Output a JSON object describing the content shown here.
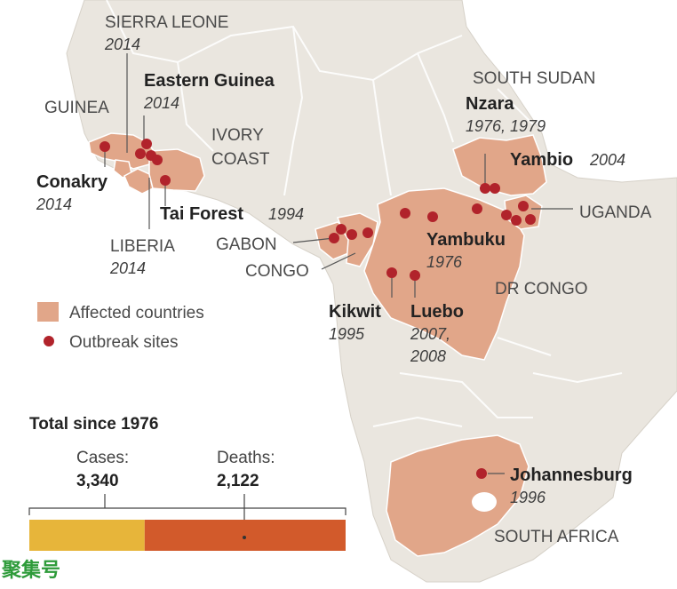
{
  "colors": {
    "ocean": "#ffffff",
    "land": "#eae6df",
    "affected": "#e1a689",
    "site": "#b1232b",
    "cases_bar": "#e7b53a",
    "deaths_bar": "#d25a2b"
  },
  "regions": {
    "sierra_leone": "SIERRA LEONE",
    "guinea": "GUINEA",
    "ivory_coast_line1": "IVORY",
    "ivory_coast_line2": "COAST",
    "liberia": "LIBERIA",
    "gabon": "GABON",
    "congo": "CONGO",
    "south_sudan": "SOUTH SUDAN",
    "uganda": "UGANDA",
    "dr_congo": "DR CONGO",
    "south_africa": "SOUTH AFRICA"
  },
  "region_years": {
    "sierra_leone": "2014",
    "liberia": "2014"
  },
  "sites": {
    "conakry": {
      "name": "Conakry",
      "year": "2014"
    },
    "eastern_guinea": {
      "name": "Eastern Guinea",
      "year": "2014"
    },
    "tai_forest": {
      "name": "Tai Forest",
      "year": "1994"
    },
    "nzara": {
      "name": "Nzara",
      "year": "1976, 1979"
    },
    "yambio": {
      "name": "Yambio",
      "year": "2004"
    },
    "yambuku": {
      "name": "Yambuku",
      "year": "1976"
    },
    "kikwit": {
      "name": "Kikwit",
      "year": "1995"
    },
    "luebo": {
      "name": "Luebo",
      "year_line1": "2007,",
      "year_line2": "2008"
    },
    "johannesburg": {
      "name": "Johannesburg",
      "year": "1996"
    }
  },
  "legend": {
    "affected": "Affected countries",
    "outbreak": "Outbreak sites"
  },
  "totals": {
    "title": "Total since 1976",
    "cases_label": "Cases:",
    "cases_value": "3,340",
    "deaths_label": "Deaths:",
    "deaths_value": "2,122",
    "cases": 3340,
    "deaths": 2122
  },
  "watermark": "聚集号"
}
